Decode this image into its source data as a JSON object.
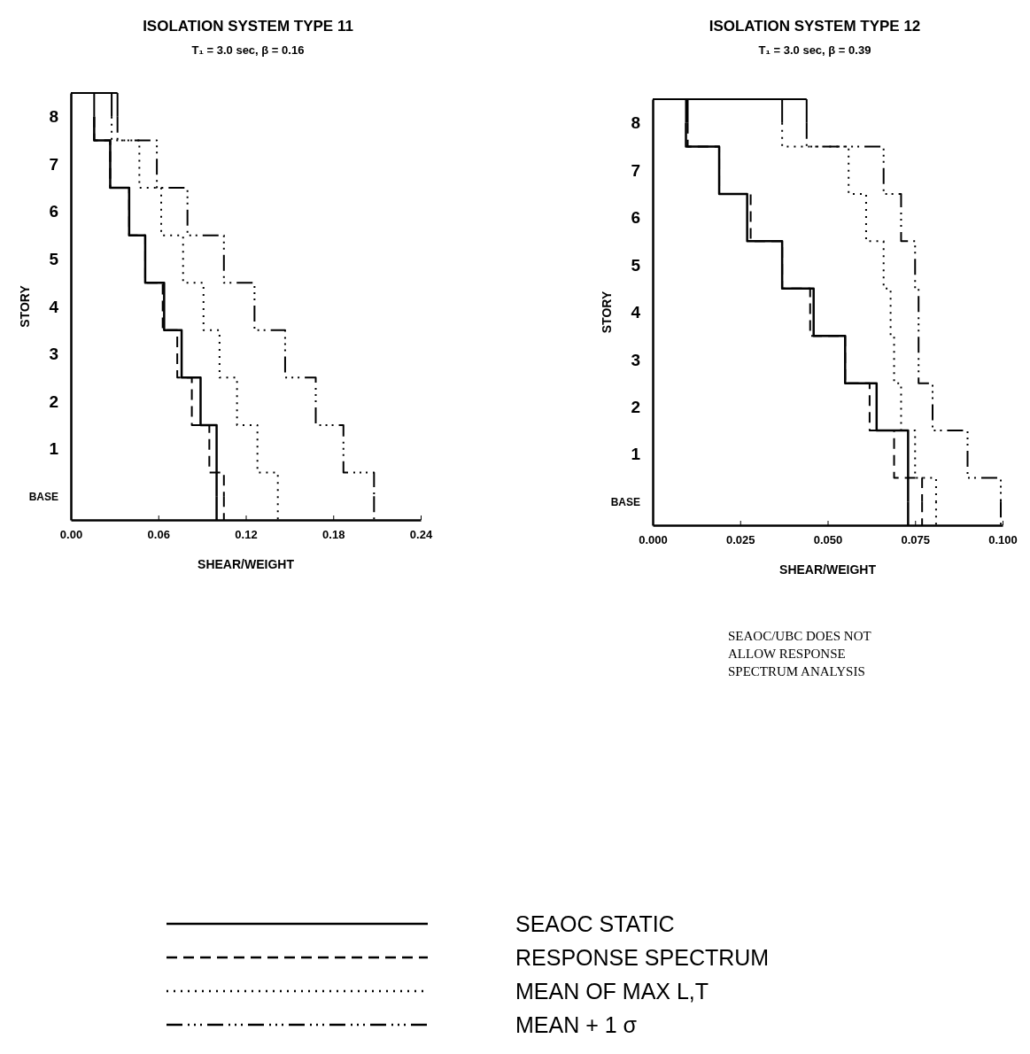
{
  "chart_data": [
    {
      "type": "step",
      "orientation": "horizontal",
      "title": "ISOLATION SYSTEM TYPE 11",
      "subtitle": "T₁ = 3.0 sec,  β = 0.16",
      "xlabel": "SHEAR/WEIGHT",
      "ylabel": "STORY",
      "legend": "bottom",
      "categories": [
        "8",
        "7",
        "6",
        "5",
        "4",
        "3",
        "2",
        "1",
        "BASE"
      ],
      "xlim": [
        0,
        0.24
      ],
      "xticks": [
        {
          "value": 0,
          "label": "0.00"
        },
        {
          "value": 0.06,
          "label": "0.06"
        },
        {
          "value": 0.12,
          "label": "0.12"
        },
        {
          "value": 0.18,
          "label": "0.18"
        },
        {
          "value": 0.24,
          "label": "0.24"
        }
      ],
      "series": [
        {
          "name": "SEAOC STATIC",
          "color": "#000000",
          "line_style": "solid",
          "values": [
            0.016,
            0.027,
            0.04,
            0.051,
            0.064,
            0.076,
            0.089,
            0.1,
            0.1
          ]
        },
        {
          "name": "RESPONSE SPECTRUM",
          "color": "#000000",
          "line_style": "dashed",
          "values": [
            0.016,
            0.027,
            0.04,
            0.051,
            0.063,
            0.073,
            0.083,
            0.095,
            0.105
          ]
        },
        {
          "name": "MEAN OF MAX L,T",
          "color": "#000000",
          "line_style": "dotted",
          "values": [
            0.028,
            0.047,
            0.062,
            0.077,
            0.091,
            0.102,
            0.114,
            0.128,
            0.142
          ]
        },
        {
          "name": "MEAN + 1 σ",
          "color": "#000000",
          "line_style": "dashdot",
          "values": [
            0.032,
            0.059,
            0.08,
            0.105,
            0.126,
            0.147,
            0.168,
            0.187,
            0.208
          ]
        }
      ]
    },
    {
      "type": "step",
      "orientation": "horizontal",
      "title": "ISOLATION SYSTEM TYPE 12",
      "subtitle": "T₁ = 3.0 sec,  β = 0.39",
      "xlabel": "SHEAR/WEIGHT",
      "ylabel": "STORY",
      "annotations": [
        "SEAOC/UBC DOES NOT\nALLOW RESPONSE\nSPECTRUM ANALYSIS"
      ],
      "categories": [
        "8",
        "7",
        "6",
        "5",
        "4",
        "3",
        "2",
        "1",
        "BASE"
      ],
      "xlim": [
        0,
        0.1
      ],
      "xticks": [
        {
          "value": 0,
          "label": "0.000"
        },
        {
          "value": 0.025,
          "label": "0.025"
        },
        {
          "value": 0.05,
          "label": "0.050"
        },
        {
          "value": 0.075,
          "label": "0.075"
        },
        {
          "value": 0.1,
          "label": "0.100"
        }
      ],
      "series": [
        {
          "color": "#000000",
          "line_style": "solid",
          "values": [
            0.0095,
            0.019,
            0.027,
            0.037,
            0.046,
            0.055,
            0.064,
            0.073,
            0.073
          ]
        },
        {
          "color": "#000000",
          "line_style": "dashed",
          "values": [
            0.01,
            0.019,
            0.028,
            0.037,
            0.045,
            0.055,
            0.062,
            0.069,
            0.077
          ]
        },
        {
          "color": "#000000",
          "line_style": "dotted",
          "values": [
            0.037,
            0.056,
            0.061,
            0.066,
            0.068,
            0.069,
            0.071,
            0.075,
            0.081
          ]
        },
        {
          "color": "#000000",
          "line_style": "dashdot",
          "values": [
            0.044,
            0.066,
            0.071,
            0.075,
            0.076,
            0.076,
            0.08,
            0.09,
            0.0995
          ]
        }
      ]
    }
  ]
}
